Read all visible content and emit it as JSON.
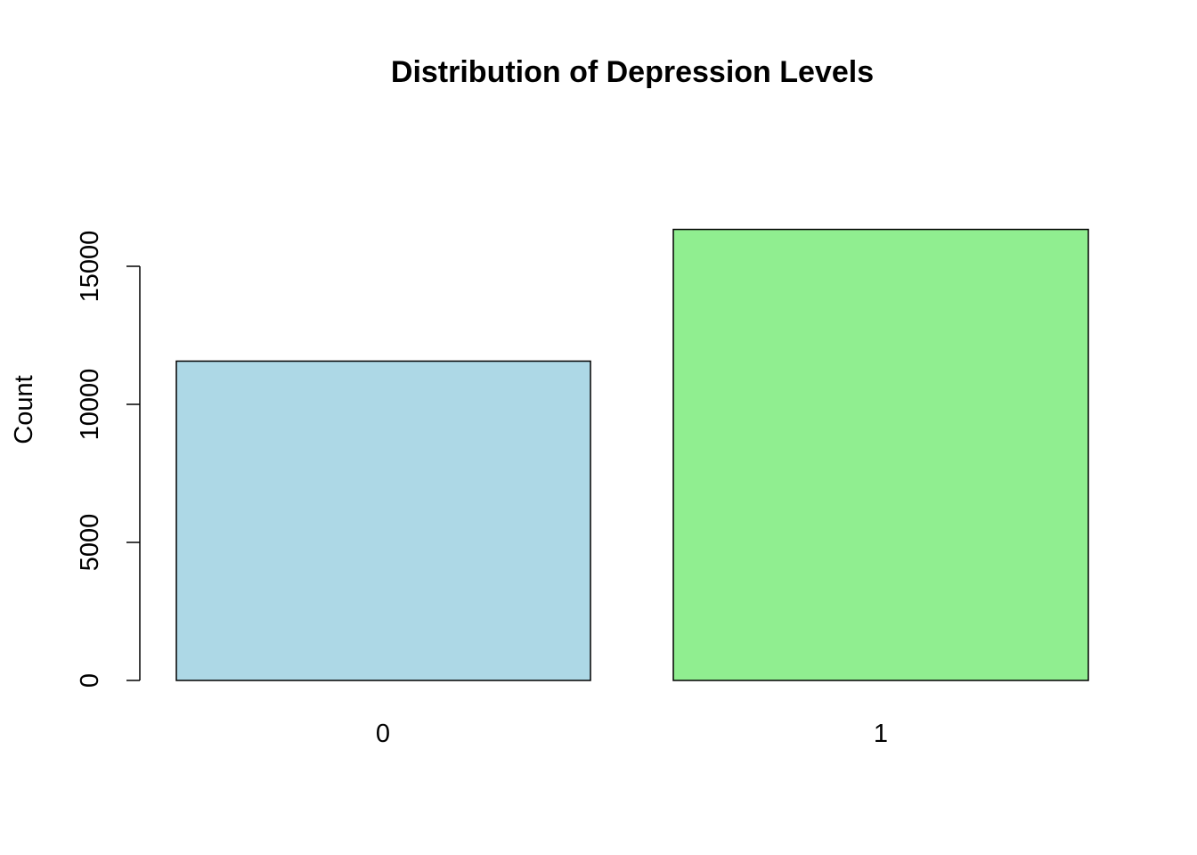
{
  "chart_data": {
    "type": "bar",
    "title": "Distribution of Depression Levels",
    "xlabel": "",
    "ylabel": "Count",
    "categories": [
      "0",
      "1"
    ],
    "values": [
      11565,
      16336
    ],
    "colors": [
      "#ADD8E6",
      "#90EE90"
    ],
    "yticks": [
      0,
      5000,
      10000,
      15000
    ],
    "ytick_labels": [
      "0",
      "5000",
      "10000",
      "15000"
    ],
    "ylim": [
      0,
      16336
    ],
    "grid": false,
    "legend": "none"
  }
}
